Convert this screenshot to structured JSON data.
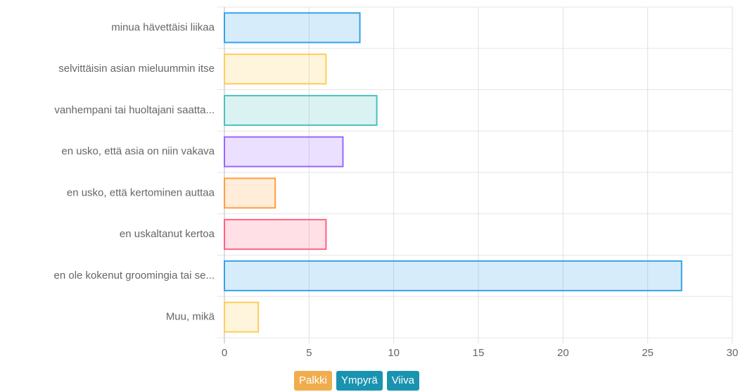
{
  "chart_data": {
    "type": "bar",
    "orientation": "horizontal",
    "categories": [
      "minua hävettäisi liikaa",
      "selvittäisin asian mieluummin itse",
      "vanhempani tai huoltajani saatta...",
      "en usko, että asia on niin vakava",
      "en usko, että kertominen auttaa",
      "en uskaltanut kertoa",
      "en ole kokenut groomingia tai se...",
      "Muu, mikä"
    ],
    "values": [
      8,
      6,
      9,
      7,
      3,
      6,
      27,
      2
    ],
    "colors": [
      "#36a2eb",
      "#ffcd56",
      "#4bc0c0",
      "#9966ff",
      "#ff9f40",
      "#ff6384",
      "#36a2eb",
      "#ffcd56"
    ],
    "xlim": [
      0,
      30
    ],
    "xticks": [
      0,
      5,
      10,
      15,
      20,
      25,
      30
    ],
    "grid": true
  },
  "controls": {
    "buttons": [
      "Palkki",
      "Ympyrä",
      "Viiva"
    ]
  }
}
